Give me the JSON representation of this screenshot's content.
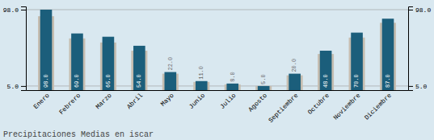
{
  "chart_data": {
    "type": "bar",
    "title": "Precipitaciones Medias en iscar",
    "categories": [
      "Enero",
      "Febrero",
      "Marzo",
      "Abril",
      "Mayo",
      "Junio",
      "Julio",
      "Agosto",
      "Septiembre",
      "Octubre",
      "Noviembre",
      "Diciembre"
    ],
    "series": [
      {
        "color": "#c5bdb0",
        "values": [
          90,
          63,
          58,
          48,
          20,
          10,
          7,
          5,
          18,
          44,
          64,
          82
        ]
      },
      {
        "color": "#1b5e7b",
        "values": [
          98,
          69,
          65,
          54,
          22,
          11,
          8,
          5,
          20,
          48,
          70,
          87
        ],
        "value_labels": [
          "98.0",
          "69.0",
          "65.0",
          "54.0",
          "22.0",
          "11.0",
          "8.0",
          "5.0",
          "20.0",
          "48.0",
          "70.0",
          "87.0"
        ]
      }
    ],
    "ylim": [
      0,
      101.92
    ],
    "yticks": [
      {
        "value": 5.0,
        "label": "5.0"
      },
      {
        "value": 98.0,
        "label": "98.0"
      }
    ],
    "grid": true,
    "data_labels": true
  }
}
